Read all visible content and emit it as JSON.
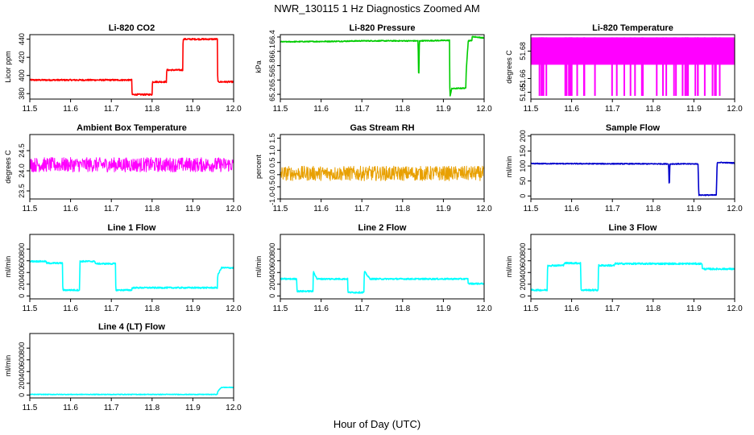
{
  "figure": {
    "title": "NWR_130115  1 Hz Diagnostics Zoomed AM",
    "xlabel": "Hour of Day (UTC)"
  },
  "chart_data": [
    {
      "type": "line",
      "title": "Li-820 CO2",
      "ylabel": "Licor ppm",
      "color": "#ff0000",
      "xlim": [
        11.5,
        12.0
      ],
      "x_ticks": [
        "11.5",
        "11.6",
        "11.7",
        "11.8",
        "11.9",
        "12.0"
      ],
      "ylim": [
        374,
        445
      ],
      "y_ticks": [
        {
          "value": 380,
          "label": "380"
        },
        {
          "value": 400,
          "label": "400"
        },
        {
          "value": 420,
          "label": "420"
        },
        {
          "value": 440,
          "label": "440"
        }
      ],
      "noise": 0.8,
      "series": [
        {
          "x": [
            11.5,
            11.75,
            11.751,
            11.8,
            11.801,
            11.835,
            11.836,
            11.875,
            11.876,
            11.96,
            11.961,
            12.0
          ],
          "y": [
            395,
            395,
            379,
            379,
            393,
            393,
            406,
            406,
            440,
            440,
            393,
            393
          ]
        }
      ]
    },
    {
      "type": "line",
      "title": "Li-820 Pressure",
      "ylabel": "kPa",
      "color": "#00cc00",
      "xlim": [
        11.5,
        12.0
      ],
      "x_ticks": [
        "11.5",
        "11.6",
        "11.7",
        "11.8",
        "11.9",
        "12.0"
      ],
      "ylim": [
        65.1,
        66.45
      ],
      "y_ticks": [
        {
          "value": 65.2,
          "label": "65.2"
        },
        {
          "value": 65.5,
          "label": "65.5"
        },
        {
          "value": 65.8,
          "label": "65.8"
        },
        {
          "value": 66.1,
          "label": "66.1"
        },
        {
          "value": 66.4,
          "label": "66.4"
        }
      ],
      "noise": 0.01,
      "series": [
        {
          "x": [
            11.5,
            11.64,
            11.7,
            11.838,
            11.839,
            11.84,
            11.841,
            11.915,
            11.916,
            11.92,
            11.921,
            11.955,
            11.956,
            11.96,
            11.961,
            11.97,
            11.971,
            12.0
          ],
          "y": [
            66.3,
            66.31,
            66.32,
            66.32,
            65.65,
            65.65,
            66.32,
            66.33,
            65.15,
            65.3,
            65.32,
            65.33,
            65.7,
            66.2,
            66.32,
            66.33,
            66.41,
            66.38
          ]
        }
      ]
    },
    {
      "type": "line",
      "title": "Li-820 Temperature",
      "ylabel": "degrees C",
      "color": "#ff00ff",
      "xlim": [
        11.5,
        12.0
      ],
      "x_ticks": [
        "11.5",
        "11.6",
        "11.7",
        "11.8",
        "11.9",
        "12.0"
      ],
      "ylim": [
        51.645,
        51.692
      ],
      "y_ticks": [
        {
          "value": 51.65,
          "label": "51.65"
        },
        {
          "value": 51.66,
          "label": "51.66"
        },
        {
          "value": 51.68,
          "label": "51.68"
        }
      ],
      "band": {
        "low": 51.67,
        "high": 51.69
      },
      "series": [
        {
          "x": [
            11.5,
            12.0
          ],
          "y": [
            51.68,
            51.68
          ]
        }
      ]
    },
    {
      "type": "line",
      "title": "Ambient Box Temperature",
      "ylabel": "degrees C",
      "color": "#ff00ff",
      "xlim": [
        11.5,
        12.0
      ],
      "x_ticks": [
        "11.5",
        "11.6",
        "11.7",
        "11.8",
        "11.9",
        "12.0"
      ],
      "ylim": [
        23.3,
        24.9
      ],
      "y_ticks": [
        {
          "value": 23.5,
          "label": "23.5"
        },
        {
          "value": 24.0,
          "label": "24.0"
        },
        {
          "value": 24.5,
          "label": "24.5"
        }
      ],
      "noise": 0.18,
      "series": [
        {
          "x": [
            11.5,
            12.0
          ],
          "y": [
            24.15,
            24.15
          ]
        }
      ]
    },
    {
      "type": "line",
      "title": "Gas Stream RH",
      "ylabel": "percent",
      "color": "#e8a000",
      "xlim": [
        11.5,
        12.0
      ],
      "x_ticks": [
        "11.5",
        "11.6",
        "11.7",
        "11.8",
        "11.9",
        "12.0"
      ],
      "ylim": [
        -1.0,
        1.65
      ],
      "y_ticks": [
        {
          "value": -1.0,
          "label": "-1.0"
        },
        {
          "value": -0.5,
          "label": "-0.5"
        },
        {
          "value": 0.0,
          "label": "0.0"
        },
        {
          "value": 0.5,
          "label": "0.5"
        },
        {
          "value": 1.0,
          "label": "1.0"
        },
        {
          "value": 1.5,
          "label": "1.5"
        }
      ],
      "noise": 0.3,
      "series": [
        {
          "x": [
            11.5,
            12.0
          ],
          "y": [
            0.05,
            0.05
          ]
        }
      ]
    },
    {
      "type": "line",
      "title": "Sample Flow",
      "ylabel": "ml/min",
      "color": "#0000cc",
      "xlim": [
        11.5,
        12.0
      ],
      "x_ticks": [
        "11.5",
        "11.6",
        "11.7",
        "11.8",
        "11.9",
        "12.0"
      ],
      "ylim": [
        -10,
        205
      ],
      "y_ticks": [
        {
          "value": 0,
          "label": "0"
        },
        {
          "value": 50,
          "label": "50"
        },
        {
          "value": 100,
          "label": "100"
        },
        {
          "value": 150,
          "label": "150"
        },
        {
          "value": 200,
          "label": "200"
        }
      ],
      "noise": 1.5,
      "series": [
        {
          "x": [
            11.5,
            11.838,
            11.839,
            11.84,
            11.841,
            11.91,
            11.911,
            11.912,
            11.955,
            11.956,
            11.957,
            12.0
          ],
          "y": [
            108,
            107,
            45,
            45,
            107,
            107,
            60,
            3,
            3,
            60,
            112,
            110
          ]
        }
      ]
    },
    {
      "type": "line",
      "title": "Line 1 Flow",
      "ylabel": "ml/min",
      "color": "#00ffff",
      "xlim": [
        11.5,
        12.0
      ],
      "x_ticks": [
        "11.5",
        "11.6",
        "11.7",
        "11.8",
        "11.9",
        "12.0"
      ],
      "ylim": [
        -50,
        1050
      ],
      "y_ticks": [
        {
          "value": 0,
          "label": "0"
        },
        {
          "value": 200,
          "label": "200"
        },
        {
          "value": 400,
          "label": "400"
        },
        {
          "value": 600,
          "label": "600"
        },
        {
          "value": 800,
          "label": "800"
        }
      ],
      "noise": 12,
      "series": [
        {
          "x": [
            11.5,
            11.54,
            11.541,
            11.58,
            11.581,
            11.622,
            11.623,
            11.66,
            11.661,
            11.71,
            11.711,
            11.75,
            11.751,
            11.96,
            11.961,
            11.97,
            12.0
          ],
          "y": [
            590,
            590,
            560,
            560,
            100,
            100,
            590,
            590,
            550,
            550,
            100,
            100,
            140,
            140,
            350,
            480,
            480
          ]
        }
      ]
    },
    {
      "type": "line",
      "title": "Line 2 Flow",
      "ylabel": "ml/min",
      "color": "#00ffff",
      "xlim": [
        11.5,
        12.0
      ],
      "x_ticks": [
        "11.5",
        "11.6",
        "11.7",
        "11.8",
        "11.9",
        "12.0"
      ],
      "ylim": [
        -50,
        1050
      ],
      "y_ticks": [
        {
          "value": 0,
          "label": "0"
        },
        {
          "value": 200,
          "label": "200"
        },
        {
          "value": 400,
          "label": "400"
        },
        {
          "value": 600,
          "label": "600"
        },
        {
          "value": 800,
          "label": "800"
        }
      ],
      "noise": 12,
      "series": [
        {
          "x": [
            11.5,
            11.54,
            11.541,
            11.58,
            11.581,
            11.59,
            11.665,
            11.666,
            11.705,
            11.706,
            11.72,
            11.96,
            11.961,
            12.0
          ],
          "y": [
            290,
            290,
            80,
            80,
            420,
            290,
            290,
            60,
            60,
            420,
            290,
            290,
            210,
            210
          ]
        }
      ]
    },
    {
      "type": "line",
      "title": "Line 3 Flow",
      "ylabel": "ml/min",
      "color": "#00ffff",
      "xlim": [
        11.5,
        12.0
      ],
      "x_ticks": [
        "11.5",
        "11.6",
        "11.7",
        "11.8",
        "11.9",
        "12.0"
      ],
      "ylim": [
        -50,
        1050
      ],
      "y_ticks": [
        {
          "value": 0,
          "label": "0"
        },
        {
          "value": 200,
          "label": "200"
        },
        {
          "value": 400,
          "label": "400"
        },
        {
          "value": 600,
          "label": "600"
        },
        {
          "value": 800,
          "label": "800"
        }
      ],
      "noise": 14,
      "series": [
        {
          "x": [
            11.5,
            11.54,
            11.541,
            11.58,
            11.581,
            11.622,
            11.623,
            11.665,
            11.666,
            11.705,
            11.706,
            11.92,
            11.921,
            12.0
          ],
          "y": [
            100,
            100,
            520,
            520,
            560,
            560,
            100,
            100,
            520,
            520,
            550,
            550,
            460,
            460
          ]
        }
      ]
    },
    {
      "type": "line",
      "title": "Line 4 (LT) Flow",
      "ylabel": "ml/min",
      "color": "#00ffff",
      "xlim": [
        11.5,
        12.0
      ],
      "x_ticks": [
        "11.5",
        "11.6",
        "11.7",
        "11.8",
        "11.9",
        "12.0"
      ],
      "ylim": [
        -50,
        1050
      ],
      "y_ticks": [
        {
          "value": 0,
          "label": "0"
        },
        {
          "value": 200,
          "label": "200"
        },
        {
          "value": 400,
          "label": "400"
        },
        {
          "value": 600,
          "label": "600"
        },
        {
          "value": 800,
          "label": "800"
        }
      ],
      "noise": 5,
      "series": [
        {
          "x": [
            11.5,
            11.96,
            11.961,
            11.97,
            12.0
          ],
          "y": [
            10,
            10,
            60,
            130,
            130
          ]
        }
      ]
    }
  ]
}
